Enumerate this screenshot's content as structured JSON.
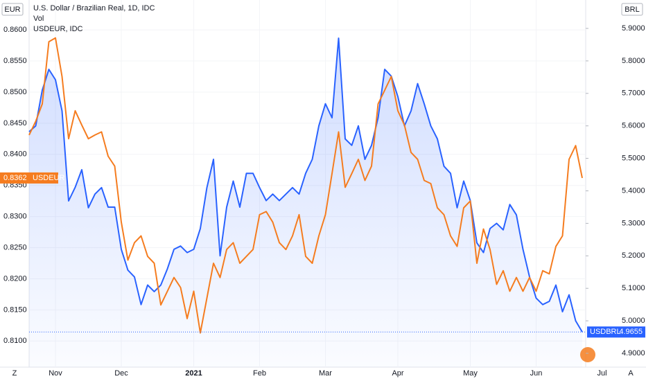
{
  "chart_data": {
    "type": "line",
    "title": "U.S. Dollar / Brazilian Real, 1D, IDC",
    "legend_lines": [
      "Vol",
      "USDEUR, IDC"
    ],
    "ylabel": "EUR",
    "y2label": "BRL",
    "buttons": [
      "Z",
      "A"
    ],
    "categories": [
      null,
      null,
      null,
      null,
      "Nov",
      null,
      null,
      null,
      null,
      null,
      null,
      null,
      null,
      null,
      "Dec",
      null,
      null,
      null,
      null,
      null,
      null,
      null,
      null,
      null,
      null,
      "2021",
      null,
      null,
      null,
      null,
      null,
      null,
      null,
      null,
      null,
      "Feb",
      null,
      null,
      null,
      null,
      null,
      null,
      null,
      null,
      null,
      "Mar",
      null,
      null,
      null,
      null,
      null,
      null,
      null,
      null,
      null,
      null,
      "Apr",
      null,
      null,
      null,
      null,
      null,
      null,
      null,
      null,
      null,
      null,
      "May",
      null,
      null,
      null,
      null,
      null,
      null,
      null,
      null,
      null,
      "Jun",
      null,
      null,
      null,
      null,
      null,
      null,
      null,
      null,
      null,
      "Jul"
    ],
    "series": [
      {
        "name": "USDBRL",
        "color": "#2962ff",
        "axis": "y2",
        "values": [
          5.582,
          5.6,
          5.71,
          5.774,
          5.742,
          5.646,
          5.369,
          5.411,
          5.465,
          5.348,
          5.39,
          5.41,
          5.35,
          5.35,
          5.22,
          5.156,
          5.135,
          5.05,
          5.11,
          5.09,
          5.11,
          5.16,
          5.22,
          5.23,
          5.21,
          5.22,
          5.284,
          5.41,
          5.497,
          5.2,
          5.35,
          5.43,
          5.35,
          5.454,
          5.454,
          5.41,
          5.37,
          5.39,
          5.37,
          5.39,
          5.41,
          5.39,
          5.454,
          5.497,
          5.6,
          5.668,
          5.625,
          5.87,
          5.56,
          5.54,
          5.6,
          5.497,
          5.54,
          5.625,
          5.774,
          5.753,
          5.69,
          5.6,
          5.646,
          5.73,
          5.668,
          5.6,
          5.56,
          5.476,
          5.454,
          5.348,
          5.43,
          5.37,
          5.24,
          5.21,
          5.284,
          5.3,
          5.28,
          5.358,
          5.326,
          5.22,
          5.135,
          5.07,
          5.05,
          5.06,
          5.11,
          5.028,
          5.08,
          5.0,
          4.9655,
          null,
          null,
          null
        ]
      },
      {
        "name": "USDEUR",
        "color": "#f57c1f",
        "values": [
          0.8431,
          0.8453,
          0.8481,
          0.8581,
          0.8587,
          0.8525,
          0.8425,
          0.847,
          0.8447,
          0.8425,
          0.8431,
          0.8436,
          0.8397,
          0.8381,
          0.8291,
          0.823,
          0.8258,
          0.8269,
          0.8236,
          0.8225,
          0.8158,
          0.818,
          0.8202,
          0.8186,
          0.8136,
          0.818,
          0.8113,
          0.8169,
          0.8225,
          0.8202,
          0.8247,
          0.8258,
          0.8225,
          0.8236,
          0.8247,
          0.8303,
          0.8308,
          0.8291,
          0.8258,
          0.8247,
          0.8269,
          0.8303,
          0.8236,
          0.8225,
          0.8269,
          0.8303,
          0.8369,
          0.8436,
          0.8347,
          0.8369,
          0.8392,
          0.8358,
          0.8381,
          0.8481,
          0.8503,
          0.8525,
          0.847,
          0.8447,
          0.8403,
          0.8392,
          0.8358,
          0.8353,
          0.8314,
          0.8303,
          0.8269,
          0.8252,
          0.8314,
          0.8325,
          0.8225,
          0.828,
          0.8247,
          0.8191,
          0.8213,
          0.818,
          0.8202,
          0.818,
          0.8202,
          0.818,
          0.8213,
          0.8208,
          0.8252,
          0.8269,
          0.8392,
          0.8414,
          0.8362,
          null,
          null,
          null
        ]
      }
    ],
    "ylim": [
      0.8058,
      0.8648
    ],
    "yticks": [
      {
        "value": 0.86,
        "label": "0.8600"
      },
      {
        "value": 0.855,
        "label": "0.8550"
      },
      {
        "value": 0.85,
        "label": "0.8500"
      },
      {
        "value": 0.845,
        "label": "0.8450"
      },
      {
        "value": 0.84,
        "label": "0.8400"
      },
      {
        "value": 0.835,
        "label": "0.8350"
      },
      {
        "value": 0.83,
        "label": "0.8300"
      },
      {
        "value": 0.825,
        "label": "0.8250"
      },
      {
        "value": 0.82,
        "label": "0.8200"
      },
      {
        "value": 0.815,
        "label": "0.8150"
      },
      {
        "value": 0.81,
        "label": "0.8100"
      }
    ],
    "y2lim": [
      4.8574,
      5.9874
    ],
    "y2ticks": [
      {
        "value": 5.9,
        "label": "5.9000"
      },
      {
        "value": 5.8,
        "label": "5.8000"
      },
      {
        "value": 5.7,
        "label": "5.7000"
      },
      {
        "value": 5.6,
        "label": "5.6000"
      },
      {
        "value": 5.5,
        "label": "5.5000"
      },
      {
        "value": 5.4,
        "label": "5.4000"
      },
      {
        "value": 5.3,
        "label": "5.3000"
      },
      {
        "value": 5.2,
        "label": "5.2000"
      },
      {
        "value": 5.1,
        "label": "5.1000"
      },
      {
        "value": 5.0,
        "label": "5.0000"
      },
      {
        "value": 4.9,
        "label": "4.9000"
      }
    ],
    "grid": true
  }
}
